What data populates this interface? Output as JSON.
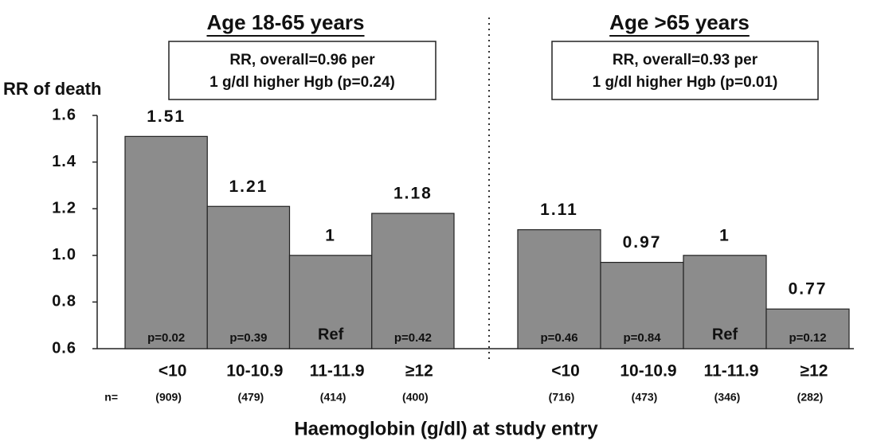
{
  "chart_data": [
    {
      "type": "bar",
      "title": "Age 18-65 years",
      "annotation": [
        "RR, overall=0.96 per",
        "1 g/dl higher Hgb (p=0.24)"
      ],
      "ylabel": "RR of death",
      "xlabel": "Haemoglobin (g/dl) at study entry",
      "n_prefix": "n=",
      "categories": [
        "<10",
        "10-10.9",
        "11-11.9",
        "≥12"
      ],
      "values": [
        1.51,
        1.21,
        1,
        1.18
      ],
      "color": "#8c8c8c",
      "p_labels": [
        "p=0.02",
        "p=0.39",
        "Ref",
        "p=0.42"
      ],
      "n_labels": [
        "(909)",
        "(479)",
        "(414)",
        "(400)"
      ],
      "ylim": [
        0.6,
        1.6
      ],
      "yticks": [
        0.6,
        0.8,
        {
          "value": 1.0,
          "label": "1.0"
        },
        1.2,
        1.4,
        1.6
      ]
    },
    {
      "type": "bar",
      "title": "Age >65 years",
      "annotation": [
        "RR, overall=0.93 per",
        "1 g/dl higher Hgb (p=0.01)"
      ],
      "categories": [
        "<10",
        "10-10.9",
        "11-11.9",
        "≥12"
      ],
      "values": [
        1.11,
        0.97,
        1,
        0.77
      ],
      "color": "#8c8c8c",
      "p_labels": [
        "p=0.46",
        "p=0.84",
        "Ref",
        "p=0.12"
      ],
      "n_labels": [
        "(716)",
        "(473)",
        "(346)",
        "(282)"
      ],
      "ylim": [
        0.6,
        1.6
      ]
    }
  ]
}
